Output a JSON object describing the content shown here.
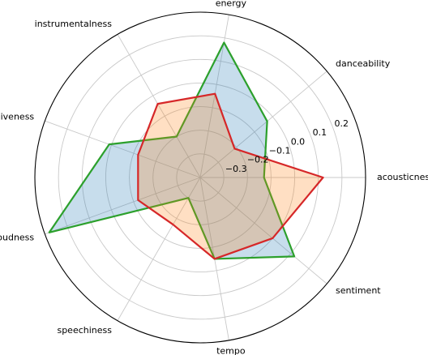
{
  "chart_data": {
    "type": "radar",
    "categories": [
      "acousticness",
      "danceability",
      "energy",
      "instrumentalness",
      "liveness",
      "loudness",
      "speechiness",
      "tempo",
      "sentiment"
    ],
    "r_ticks": [
      -0.3,
      -0.2,
      -0.1,
      0.0,
      0.1,
      0.2
    ],
    "r_tick_labels": [
      "−0.3",
      "−0.2",
      "−0.1",
      "0.0",
      "0.1",
      "0.2"
    ],
    "rlim": [
      -0.4,
      0.3
    ],
    "grid": true,
    "series": [
      {
        "values": [
          -0.13,
          -0.03,
          0.18,
          -0.2,
          0.01,
          0.28,
          -0.3,
          -0.05,
          0.12
        ],
        "edge_color": "#2ca02c",
        "fill_color": "#1f77b4",
        "fill_opacity": 0.25
      },
      {
        "values": [
          0.12,
          -0.21,
          -0.04,
          -0.04,
          -0.12,
          -0.12,
          -0.17,
          -0.05,
          0.0
        ],
        "edge_color": "#d62728",
        "fill_color": "#ff7f0e",
        "fill_opacity": 0.25
      }
    ]
  }
}
